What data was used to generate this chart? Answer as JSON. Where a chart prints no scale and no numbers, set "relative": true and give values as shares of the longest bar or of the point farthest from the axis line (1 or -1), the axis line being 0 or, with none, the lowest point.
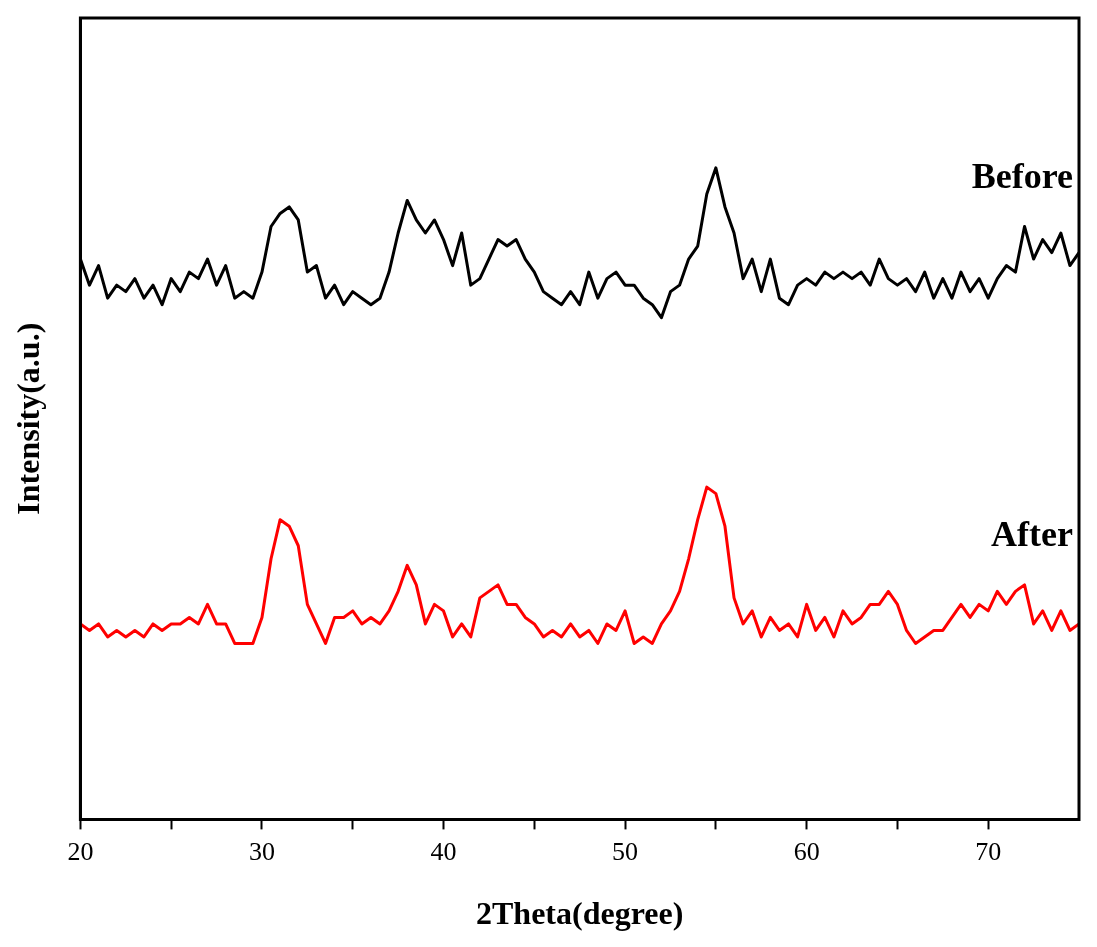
{
  "chart_data": {
    "type": "line",
    "xlabel": "2Theta(degree)",
    "ylabel": "Intensity(a.u.)",
    "relative": true,
    "grid": false,
    "legend": false,
    "marker": "none",
    "line_style": "solid",
    "x": [
      20,
      20.5,
      21,
      21.5,
      22,
      22.5,
      23,
      23.5,
      24,
      24.5,
      25,
      25.5,
      26,
      26.5,
      27,
      27.5,
      28,
      28.5,
      29,
      29.5,
      30,
      30.5,
      31,
      31.5,
      32,
      32.5,
      33,
      33.5,
      34,
      34.5,
      35,
      35.5,
      36,
      36.5,
      37,
      37.5,
      38,
      38.5,
      39,
      39.5,
      40,
      40.5,
      41,
      41.5,
      42,
      42.5,
      43,
      43.5,
      44,
      44.5,
      45,
      45.5,
      46,
      46.5,
      47,
      47.5,
      48,
      48.5,
      49,
      49.5,
      50,
      50.5,
      51,
      51.5,
      52,
      52.5,
      53,
      53.5,
      54,
      54.5,
      55,
      55.5,
      56,
      56.5,
      57,
      57.5,
      58,
      58.5,
      59,
      59.5,
      60,
      60.5,
      61,
      61.5,
      62,
      62.5,
      63,
      63.5,
      64,
      64.5,
      65,
      65.5,
      66,
      66.5,
      67,
      67.5,
      68,
      68.5,
      69,
      69.5,
      70,
      70.5,
      71,
      71.5,
      72,
      72.5,
      73,
      73.5,
      74,
      74.5,
      75
    ],
    "xlim": [
      20,
      75
    ],
    "xticks": [
      20,
      {
        "value": 25,
        "label": null
      },
      30,
      {
        "value": 35,
        "label": null
      },
      40,
      {
        "value": 45,
        "label": null
      },
      50,
      {
        "value": 55,
        "label": null
      },
      60,
      {
        "value": 65,
        "label": null
      },
      70
    ],
    "series": [
      {
        "name": "Before",
        "color": "#000000",
        "values": [
          0.86,
          0.82,
          0.85,
          0.8,
          0.82,
          0.81,
          0.83,
          0.8,
          0.82,
          0.79,
          0.83,
          0.81,
          0.84,
          0.83,
          0.86,
          0.82,
          0.85,
          0.8,
          0.81,
          0.8,
          0.84,
          0.91,
          0.93,
          0.94,
          0.92,
          0.84,
          0.85,
          0.8,
          0.82,
          0.79,
          0.81,
          0.8,
          0.79,
          0.8,
          0.84,
          0.9,
          0.95,
          0.92,
          0.9,
          0.92,
          0.89,
          0.85,
          0.9,
          0.82,
          0.83,
          0.86,
          0.89,
          0.88,
          0.89,
          0.86,
          0.84,
          0.81,
          0.8,
          0.79,
          0.81,
          0.79,
          0.84,
          0.8,
          0.83,
          0.84,
          0.82,
          0.82,
          0.8,
          0.79,
          0.77,
          0.81,
          0.82,
          0.86,
          0.88,
          0.96,
          1.0,
          0.94,
          0.9,
          0.83,
          0.86,
          0.81,
          0.86,
          0.8,
          0.79,
          0.82,
          0.83,
          0.82,
          0.84,
          0.83,
          0.84,
          0.83,
          0.84,
          0.82,
          0.86,
          0.83,
          0.82,
          0.83,
          0.81,
          0.84,
          0.8,
          0.83,
          0.8,
          0.84,
          0.81,
          0.83,
          0.8,
          0.83,
          0.85,
          0.84,
          0.91,
          0.86,
          0.89,
          0.87,
          0.9,
          0.85,
          0.87
        ]
      },
      {
        "name": "After",
        "color": "#ff0000",
        "values": [
          0.3,
          0.29,
          0.3,
          0.28,
          0.29,
          0.28,
          0.29,
          0.28,
          0.3,
          0.29,
          0.3,
          0.3,
          0.31,
          0.3,
          0.33,
          0.3,
          0.3,
          0.27,
          0.27,
          0.27,
          0.31,
          0.4,
          0.46,
          0.45,
          0.42,
          0.33,
          0.3,
          0.27,
          0.31,
          0.31,
          0.32,
          0.3,
          0.31,
          0.3,
          0.32,
          0.35,
          0.39,
          0.36,
          0.3,
          0.33,
          0.32,
          0.28,
          0.3,
          0.28,
          0.34,
          0.35,
          0.36,
          0.33,
          0.33,
          0.31,
          0.3,
          0.28,
          0.29,
          0.28,
          0.3,
          0.28,
          0.29,
          0.27,
          0.3,
          0.29,
          0.32,
          0.27,
          0.28,
          0.27,
          0.3,
          0.32,
          0.35,
          0.4,
          0.46,
          0.51,
          0.5,
          0.45,
          0.34,
          0.3,
          0.32,
          0.28,
          0.31,
          0.29,
          0.3,
          0.28,
          0.33,
          0.29,
          0.31,
          0.28,
          0.32,
          0.3,
          0.31,
          0.33,
          0.33,
          0.35,
          0.33,
          0.29,
          0.27,
          0.28,
          0.29,
          0.29,
          0.31,
          0.33,
          0.31,
          0.33,
          0.32,
          0.35,
          0.33,
          0.35,
          0.36,
          0.3,
          0.32,
          0.29,
          0.32,
          0.29,
          0.3
        ]
      }
    ]
  }
}
